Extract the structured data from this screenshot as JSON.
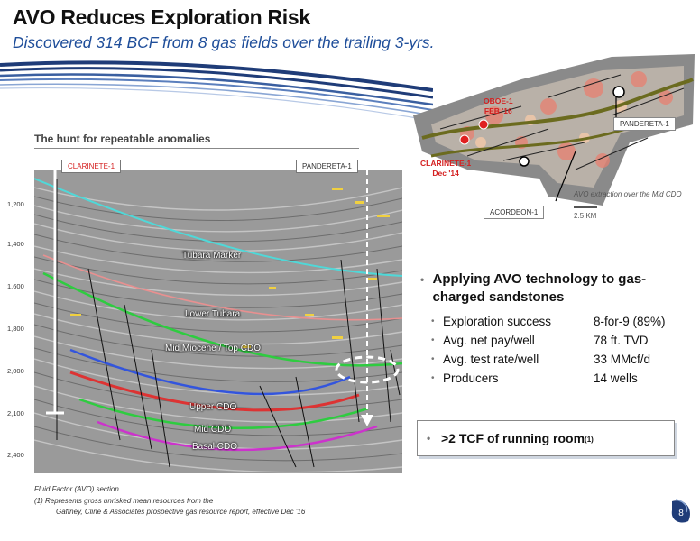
{
  "header": {
    "title": "AVO Reduces Exploration Risk",
    "subtitle": "Discovered 314 BCF from 8 gas fields over the trailing 3-yrs."
  },
  "map": {
    "labels": [
      {
        "name": "OBOE-1",
        "date": "FEB '16"
      },
      {
        "name": "CLARINETE-1",
        "date": "Dec '14"
      }
    ],
    "pandereta_label": "PANDERETA-1",
    "acordeon_label": "ACORDEON-1",
    "caption": "AVO extraction over the Mid CDO",
    "scale": "2.5 KM"
  },
  "section": {
    "heading": "The hunt for repeatable anomalies",
    "well_left": "CLARINETE-1",
    "well_right": "PANDERETA-1",
    "depths": [
      "1,200",
      "1,400",
      "1,600",
      "1,800",
      "2,000",
      "2,100",
      "2,400"
    ],
    "horizons": [
      "Tubara Marker",
      "Lower Tubara",
      "Mid Miocene / Top CDO",
      "Upper CDO",
      "Mid CDO",
      "Basal CDO"
    ]
  },
  "bullets": {
    "main": "Applying AVO technology to gas-charged sandstones",
    "items": [
      {
        "label": "Exploration success",
        "value": "8-for-9 (89%)"
      },
      {
        "label": "Avg. net pay/well",
        "value": "78 ft. TVD"
      },
      {
        "label": "Avg. test rate/well",
        "value": "33 MMcf/d"
      },
      {
        "label": "Producers",
        "value": "14 wells"
      }
    ]
  },
  "callout": {
    "text": ">2 TCF of running room",
    "note": "(1)"
  },
  "footnotes": {
    "line1": "Fluid Factor (AVO) section",
    "line2": "(1)    Represents gross unrisked mean resources from the",
    "line3": "Gaffney, Cline & Associates prospective gas resource report, effective Dec '16"
  },
  "page_number": "8",
  "colors": {
    "accent": "#1f4e9a",
    "alert": "#d42020"
  }
}
